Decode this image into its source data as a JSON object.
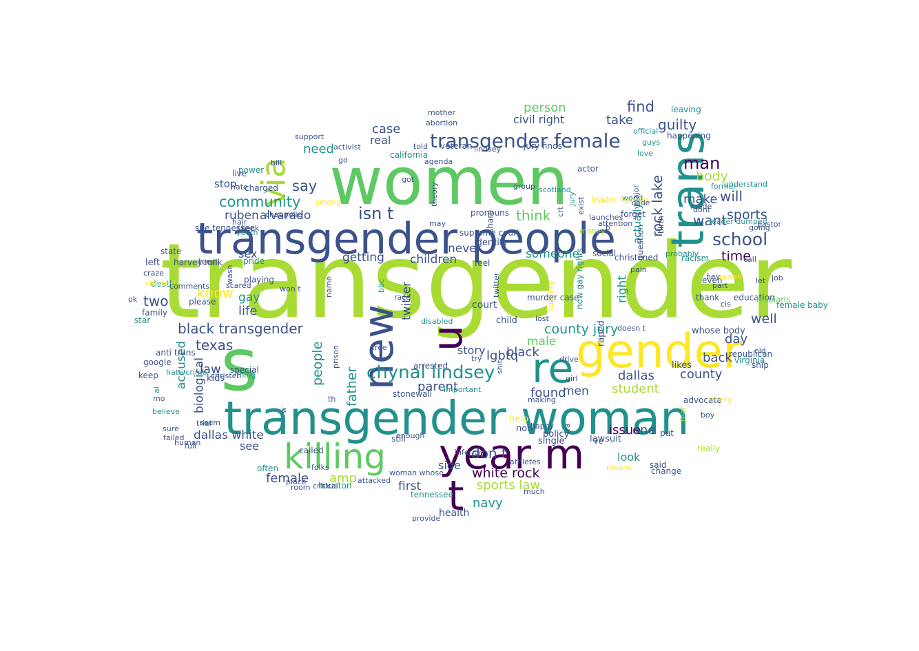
{
  "colors": [
    "#440154",
    "#3b528b",
    "#21918c",
    "#5ec962",
    "#a8db34",
    "#fde725"
  ],
  "word_cloud": {
    "words": [
      {
        "text": "transgender",
        "color": "#a8db34"
      },
      {
        "text": "women",
        "color": "#5ec962"
      },
      {
        "text": "s",
        "color": "#5ec962"
      },
      {
        "text": "transgender people",
        "color": "#3b528b"
      },
      {
        "text": "transgender woman",
        "color": "#21918c"
      },
      {
        "text": "trans",
        "color": "#21918c"
      },
      {
        "text": "gender",
        "color": "#fde725"
      },
      {
        "text": "killing",
        "color": "#5ec962"
      },
      {
        "text": "year m",
        "color": "#440154"
      },
      {
        "text": "new",
        "color": "#3b528b"
      },
      {
        "text": "re",
        "color": "#21918c"
      },
      {
        "text": "u",
        "color": "#440154"
      },
      {
        "text": "t",
        "color": "#440154"
      },
      {
        "text": "via",
        "color": "#a8db34"
      },
      {
        "text": "transgender female",
        "color": "#3b528b"
      },
      {
        "text": "chynal lindsey",
        "color": "#21918c"
      },
      {
        "text": "community",
        "color": "#21918c"
      },
      {
        "text": "ruben",
        "color": "#3b528b"
      },
      {
        "text": "alvarado",
        "color": "#3b528b"
      },
      {
        "text": "isn t",
        "color": "#3b528b"
      },
      {
        "text": "black transgender",
        "color": "#3b528b"
      },
      {
        "text": "school",
        "color": "#3b528b"
      },
      {
        "text": "man",
        "color": "#440154"
      },
      {
        "text": "find",
        "color": "#3b528b"
      },
      {
        "text": "person",
        "color": "#5ec962"
      },
      {
        "text": "guilty",
        "color": "#3b528b"
      },
      {
        "text": "take",
        "color": "#3b528b"
      },
      {
        "text": "civil right",
        "color": "#3b528b"
      },
      {
        "text": "case",
        "color": "#3b528b"
      },
      {
        "text": "need",
        "color": "#21918c"
      },
      {
        "text": "real",
        "color": "#3b528b"
      },
      {
        "text": "think",
        "color": "#5ec962"
      },
      {
        "text": "never",
        "color": "#3b528b"
      },
      {
        "text": "say",
        "color": "#3b528b"
      },
      {
        "text": "stop",
        "color": "#3b528b"
      },
      {
        "text": "sex",
        "color": "#3b528b"
      },
      {
        "text": "getting",
        "color": "#3b528b"
      },
      {
        "text": "children",
        "color": "#3b528b"
      },
      {
        "text": "someone",
        "color": "#21918c"
      },
      {
        "text": "time",
        "color": "#440154"
      },
      {
        "text": "want",
        "color": "#3b528b"
      },
      {
        "text": "make",
        "color": "#3b528b"
      },
      {
        "text": "sports",
        "color": "#3b528b"
      },
      {
        "text": "body",
        "color": "#a8db34"
      },
      {
        "text": "will",
        "color": "#3b528b"
      },
      {
        "text": "know",
        "color": "#fde725"
      },
      {
        "text": "gay",
        "color": "#21918c"
      },
      {
        "text": "two",
        "color": "#3b528b"
      },
      {
        "text": "life",
        "color": "#3b528b"
      },
      {
        "text": "texas",
        "color": "#3b528b"
      },
      {
        "text": "law",
        "color": "#3b528b"
      },
      {
        "text": "biological",
        "color": "#3b528b"
      },
      {
        "text": "accused",
        "color": "#21918c"
      },
      {
        "text": "people",
        "color": "#21918c"
      },
      {
        "text": "father",
        "color": "#21918c"
      },
      {
        "text": "lgbtq",
        "color": "#3b528b"
      },
      {
        "text": "parent",
        "color": "#3b528b"
      },
      {
        "text": "found",
        "color": "#3b528b"
      },
      {
        "text": "men",
        "color": "#3b528b"
      },
      {
        "text": "student",
        "color": "#a8db34"
      },
      {
        "text": "dallas",
        "color": "#3b528b"
      },
      {
        "text": "county",
        "color": "#3b528b"
      },
      {
        "text": "county jury",
        "color": "#21918c"
      },
      {
        "text": "black",
        "color": "#3b528b"
      },
      {
        "text": "male",
        "color": "#5ec962"
      },
      {
        "text": "well",
        "color": "#3b528b"
      },
      {
        "text": "day",
        "color": "#3b528b"
      },
      {
        "text": "back",
        "color": "#3b528b"
      },
      {
        "text": "story",
        "color": "#3b528b"
      },
      {
        "text": "don t",
        "color": "#3b528b"
      },
      {
        "text": "white rock",
        "color": "#440154"
      },
      {
        "text": "navy",
        "color": "#21918c"
      },
      {
        "text": "sports law",
        "color": "#a8db34"
      },
      {
        "text": "amp",
        "color": "#a8db34"
      },
      {
        "text": "female",
        "color": "#3b528b"
      },
      {
        "text": "see",
        "color": "#3b528b"
      },
      {
        "text": "dallas white",
        "color": "#3b528b"
      },
      {
        "text": "first",
        "color": "#3b528b"
      },
      {
        "text": "side",
        "color": "#3b528b"
      },
      {
        "text": "issue",
        "color": "#440154"
      },
      {
        "text": "one",
        "color": "#3b528b"
      },
      {
        "text": "look",
        "color": "#21918c"
      },
      {
        "text": "rock lake",
        "color": "#3b528b"
      },
      {
        "text": "right",
        "color": "#21918c"
      },
      {
        "text": "health",
        "color": "#3b528b"
      },
      {
        "text": "tennessee",
        "color": "#21918c"
      },
      {
        "text": "twitter",
        "color": "#3b528b"
      },
      {
        "text": "now gay rights",
        "color": "#21918c"
      },
      {
        "text": "lindsey",
        "color": "#3b528b"
      },
      {
        "text": "jury finds",
        "color": "#3b528b"
      },
      {
        "text": "leader harvey",
        "color": "#fde725"
      },
      {
        "text": "actually",
        "color": "#21918c"
      },
      {
        "text": "official",
        "color": "#21918c"
      },
      {
        "text": "happening",
        "color": "#3b528b"
      },
      {
        "text": "leaving",
        "color": "#21918c"
      },
      {
        "text": "actor",
        "color": "#3b528b"
      },
      {
        "text": "social",
        "color": "#3b528b"
      },
      {
        "text": "supreme court",
        "color": "#3b528b"
      },
      {
        "text": "pronouns",
        "color": "#3b528b"
      },
      {
        "text": "identify",
        "color": "#3b528b"
      },
      {
        "text": "feel",
        "color": "#3b528b"
      },
      {
        "text": "court",
        "color": "#3b528b"
      },
      {
        "text": "child",
        "color": "#3b528b"
      },
      {
        "text": "help",
        "color": "#fde725"
      },
      {
        "text": "non",
        "color": "#3b528b"
      },
      {
        "text": "policy",
        "color": "#3b528b"
      },
      {
        "text": "single",
        "color": "#3b528b"
      },
      {
        "text": "lawsuit",
        "color": "#3b528b"
      },
      {
        "text": "change",
        "color": "#3b528b"
      },
      {
        "text": "put",
        "color": "#3b528b"
      },
      {
        "text": "said",
        "color": "#3b528b"
      },
      {
        "text": "really",
        "color": "#a8db34"
      },
      {
        "text": "advocate",
        "color": "#3b528b"
      },
      {
        "text": "every",
        "color": "#fde725"
      },
      {
        "text": "likes",
        "color": "#3b528b"
      },
      {
        "text": "whose body",
        "color": "#3b528b"
      },
      {
        "text": "republican",
        "color": "#3b528b"
      },
      {
        "text": "virginia",
        "color": "#21918c"
      },
      {
        "text": "old",
        "color": "#3b528b"
      },
      {
        "text": "ship",
        "color": "#3b528b"
      },
      {
        "text": "cis",
        "color": "#3b528b"
      },
      {
        "text": "female baby",
        "color": "#21918c"
      },
      {
        "text": "thank",
        "color": "#3b528b"
      },
      {
        "text": "education",
        "color": "#3b528b"
      },
      {
        "text": "part",
        "color": "#3b528b"
      },
      {
        "text": "former",
        "color": "#21918c"
      },
      {
        "text": "understand",
        "color": "#21918c"
      },
      {
        "text": "going",
        "color": "#3b528b"
      },
      {
        "text": "pastor",
        "color": "#3b528b"
      },
      {
        "text": "call",
        "color": "#3b528b"
      },
      {
        "text": "job",
        "color": "#3b528b"
      },
      {
        "text": "let",
        "color": "#3b528b"
      },
      {
        "text": "lesbians",
        "color": "#5ec962"
      },
      {
        "text": "racism",
        "color": "#21918c"
      },
      {
        "text": "probably",
        "color": "#21918c"
      },
      {
        "text": "christened",
        "color": "#3b528b"
      },
      {
        "text": "forget",
        "color": "#3b528b"
      },
      {
        "text": "world",
        "color": "#21918c"
      },
      {
        "text": "money",
        "color": "#a8db34"
      },
      {
        "text": "crt",
        "color": "#3b528b"
      },
      {
        "text": "scotland",
        "color": "#21918c"
      },
      {
        "text": "group",
        "color": "#3b528b"
      },
      {
        "text": "got",
        "color": "#3b528b"
      },
      {
        "text": "theory",
        "color": "#3b528b"
      },
      {
        "text": "california",
        "color": "#21918c"
      },
      {
        "text": "agenda",
        "color": "#3b528b"
      },
      {
        "text": "told",
        "color": "#3b528b"
      },
      {
        "text": "activist",
        "color": "#3b528b"
      },
      {
        "text": "veteran",
        "color": "#3b528b"
      },
      {
        "text": "harvey milk",
        "color": "#3b528b"
      },
      {
        "text": "state",
        "color": "#3b528b"
      },
      {
        "text": "left",
        "color": "#3b528b"
      },
      {
        "text": "death",
        "color": "#21918c"
      },
      {
        "text": "teen",
        "color": "#3b528b"
      },
      {
        "text": "playing",
        "color": "#3b528b"
      },
      {
        "text": "pride",
        "color": "#21918c"
      },
      {
        "text": "sue tennessee",
        "color": "#3b528b"
      },
      {
        "text": "charged",
        "color": "#3b528b"
      },
      {
        "text": "power",
        "color": "#21918c"
      },
      {
        "text": "hate",
        "color": "#3b528b"
      },
      {
        "text": "live",
        "color": "#3b528b"
      },
      {
        "text": "please",
        "color": "#3b528b"
      },
      {
        "text": "family",
        "color": "#3b528b"
      },
      {
        "text": "star",
        "color": "#21918c"
      },
      {
        "text": "google",
        "color": "#3b528b"
      },
      {
        "text": "keep",
        "color": "#3b528b"
      },
      {
        "text": "al",
        "color": "#21918c"
      },
      {
        "text": "kids",
        "color": "#3b528b"
      },
      {
        "text": "special",
        "color": "#3b528b"
      },
      {
        "text": "seem",
        "color": "#3b528b"
      },
      {
        "text": "trial",
        "color": "#3b528b"
      },
      {
        "text": "often",
        "color": "#21918c"
      },
      {
        "text": "arrested",
        "color": "#3b528b"
      },
      {
        "text": "stonewall",
        "color": "#3b528b"
      },
      {
        "text": "still",
        "color": "#3b528b"
      },
      {
        "text": "called",
        "color": "#3b528b"
      },
      {
        "text": "woman whose",
        "color": "#3b528b"
      },
      {
        "text": "attacked",
        "color": "#3b528b"
      },
      {
        "text": "folks",
        "color": "#3b528b"
      },
      {
        "text": "houston",
        "color": "#21918c"
      },
      {
        "text": "critical",
        "color": "#3b528b"
      },
      {
        "text": "won t",
        "color": "#3b528b"
      },
      {
        "text": "surgery",
        "color": "#fde725"
      },
      {
        "text": "murder case",
        "color": "#3b528b"
      },
      {
        "text": "question",
        "color": "#3b528b"
      },
      {
        "text": "birth",
        "color": "#3b528b"
      },
      {
        "text": "leader dumped",
        "color": "#21918c"
      },
      {
        "text": "dont",
        "color": "#3b528b"
      },
      {
        "text": "made",
        "color": "#3b528b"
      },
      {
        "text": "even",
        "color": "#3b528b"
      },
      {
        "text": "speak",
        "color": "#fde725"
      },
      {
        "text": "hey",
        "color": "#3b528b"
      },
      {
        "text": "much",
        "color": "#3b528b"
      },
      {
        "text": "athletes",
        "color": "#3b528b"
      },
      {
        "text": "provide",
        "color": "#3b528b"
      },
      {
        "text": "enough",
        "color": "#3b528b"
      },
      {
        "text": "inferior",
        "color": "#3b528b"
      },
      {
        "text": "share",
        "color": "#3b528b"
      },
      {
        "text": "means",
        "color": "#fde725"
      },
      {
        "text": "disabled",
        "color": "#21918c"
      },
      {
        "text": "bbc",
        "color": "#21918c"
      },
      {
        "text": "prison",
        "color": "#3b528b"
      },
      {
        "text": "important",
        "color": "#21918c"
      },
      {
        "text": "try",
        "color": "#3b528b"
      },
      {
        "text": "shit",
        "color": "#3b528b"
      },
      {
        "text": "anti trans",
        "color": "#3b528b"
      },
      {
        "text": "hate crime",
        "color": "#21918c"
      },
      {
        "text": "believe",
        "color": "#21918c"
      },
      {
        "text": "sure",
        "color": "#3b528b"
      },
      {
        "text": "failed",
        "color": "#3b528b"
      },
      {
        "text": "human",
        "color": "#3b528b"
      },
      {
        "text": "full",
        "color": "#3b528b"
      },
      {
        "text": "place",
        "color": "#3b528b"
      },
      {
        "text": "room",
        "color": "#3b528b"
      },
      {
        "text": "youth",
        "color": "#21918c"
      },
      {
        "text": "check",
        "color": "#3b528b"
      },
      {
        "text": "bill",
        "color": "#3b528b"
      },
      {
        "text": "support",
        "color": "#3b528b"
      },
      {
        "text": "may",
        "color": "#3b528b"
      },
      {
        "text": "go",
        "color": "#3b528b"
      },
      {
        "text": "hair",
        "color": "#3b528b"
      },
      {
        "text": "chappelle",
        "color": "#3b528b"
      },
      {
        "text": "christen",
        "color": "#3b528b"
      },
      {
        "text": "thing",
        "color": "#21918c"
      },
      {
        "text": "craze",
        "color": "#3b528b"
      },
      {
        "text": "claimed",
        "color": "#fde725"
      },
      {
        "text": "comments",
        "color": "#3b528b"
      },
      {
        "text": "scared",
        "color": "#3b528b"
      },
      {
        "text": "wasn",
        "color": "#3b528b"
      },
      {
        "text": "name",
        "color": "#3b528b"
      },
      {
        "text": "race",
        "color": "#3b528b"
      },
      {
        "text": "mother",
        "color": "#3b528b"
      },
      {
        "text": "abortion",
        "color": "#3b528b"
      },
      {
        "text": "raped",
        "color": "#3b528b"
      },
      {
        "text": "jury",
        "color": "#21918c"
      },
      {
        "text": "exist",
        "color": "#3b528b"
      },
      {
        "text": "launches",
        "color": "#3b528b"
      },
      {
        "text": "attention",
        "color": "#3b528b"
      },
      {
        "text": "b",
        "color": "#3b528b"
      },
      {
        "text": "cade",
        "color": "#3b528b"
      },
      {
        "text": "major",
        "color": "#3b528b"
      },
      {
        "text": "twitter",
        "color": "#3b528b"
      },
      {
        "text": "lost",
        "color": "#3b528b"
      },
      {
        "text": "drive",
        "color": "#3b528b"
      },
      {
        "text": "girl",
        "color": "#3b528b"
      },
      {
        "text": "making",
        "color": "#3b528b"
      },
      {
        "text": "happy",
        "color": "#3b528b"
      },
      {
        "text": "tra",
        "color": "#3b528b"
      },
      {
        "text": "ve",
        "color": "#3b528b"
      },
      {
        "text": "doesn t",
        "color": "#3b528b"
      },
      {
        "text": "th",
        "color": "#3b528b"
      },
      {
        "text": "w",
        "color": "#3b528b"
      },
      {
        "text": "fear",
        "color": "#a8db34"
      },
      {
        "text": "pain",
        "color": "#3b528b"
      },
      {
        "text": "guys",
        "color": "#21918c"
      },
      {
        "text": "love",
        "color": "#21918c"
      },
      {
        "text": "free",
        "color": "#3b528b"
      },
      {
        "text": "ok",
        "color": "#3b528b"
      },
      {
        "text": "mo",
        "color": "#3b528b"
      },
      {
        "text": "boy",
        "color": "#3b528b"
      },
      {
        "text": "among",
        "color": "#fde725"
      },
      {
        "text": "though",
        "color": "#3b528b"
      }
    ]
  }
}
